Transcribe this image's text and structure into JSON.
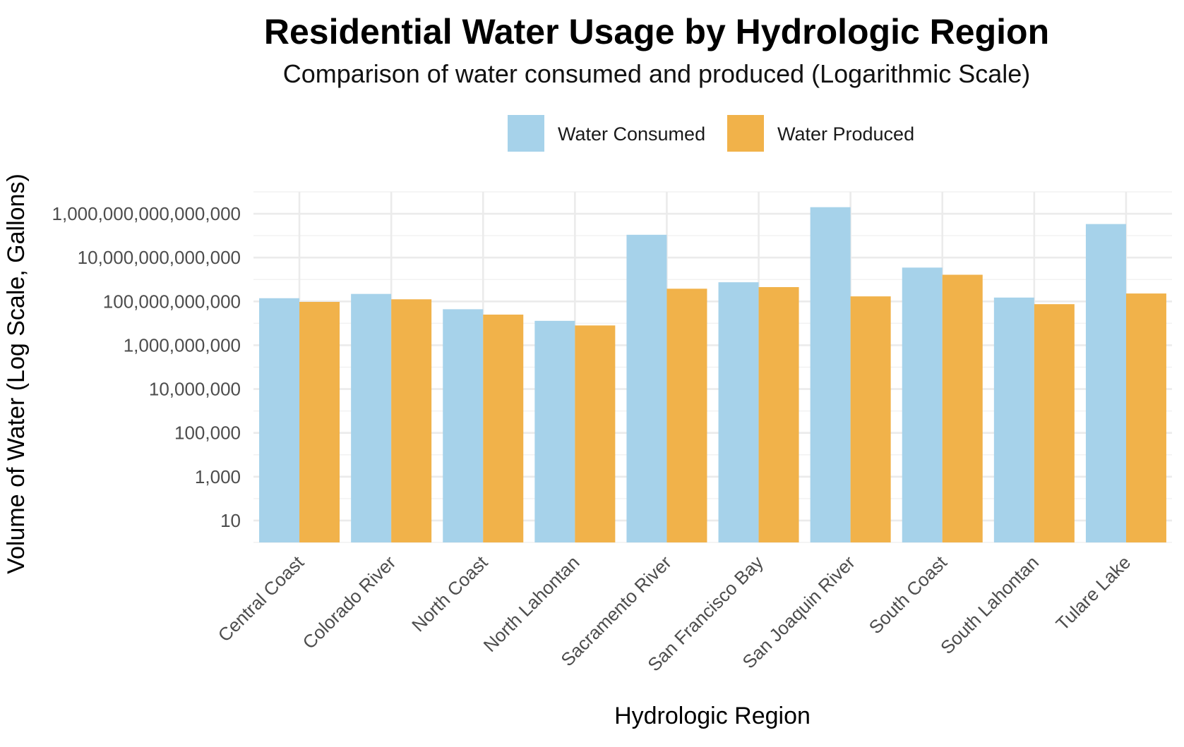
{
  "chart_data": {
    "type": "bar",
    "title": "Residential Water Usage by Hydrologic Region",
    "subtitle": "Comparison of water consumed and produced (Logarithmic Scale)",
    "xlabel": "Hydrologic Region",
    "ylabel": "Volume of Water (Log Scale, Gallons)",
    "y_scale": "log10",
    "ylim": [
      1,
      10000000000000000
    ],
    "y_ticks": [
      10,
      1000,
      100000,
      10000000,
      1000000000,
      100000000000,
      10000000000000,
      1000000000000000
    ],
    "y_tick_labels": [
      "10",
      "1,000",
      "100,000",
      "10,000,000",
      "1,000,000,000",
      "100,000,000,000",
      "10,000,000,000,000",
      "1,000,000,000,000,000"
    ],
    "grid": true,
    "legend_position": "top",
    "categories": [
      "Central Coast",
      "Colorado River",
      "North Coast",
      "North Lahontan",
      "Sacramento River",
      "San Francisco Bay",
      "San Joaquin River",
      "South Coast",
      "South Lahontan",
      "Tulare Lake"
    ],
    "series": [
      {
        "name": "Water Consumed",
        "color": "#A6D2EA",
        "values": [
          140000000000,
          220000000000,
          44000000000,
          13000000000,
          110000000000000,
          750000000000,
          2000000000000000,
          3500000000000,
          150000000000,
          340000000000000
        ]
      },
      {
        "name": "Water Produced",
        "color": "#F1B24A",
        "values": [
          95000000000,
          125000000000,
          25000000000,
          8000000000,
          380000000000,
          450000000000,
          170000000000,
          1650000000000,
          75000000000,
          230000000000
        ]
      }
    ]
  }
}
